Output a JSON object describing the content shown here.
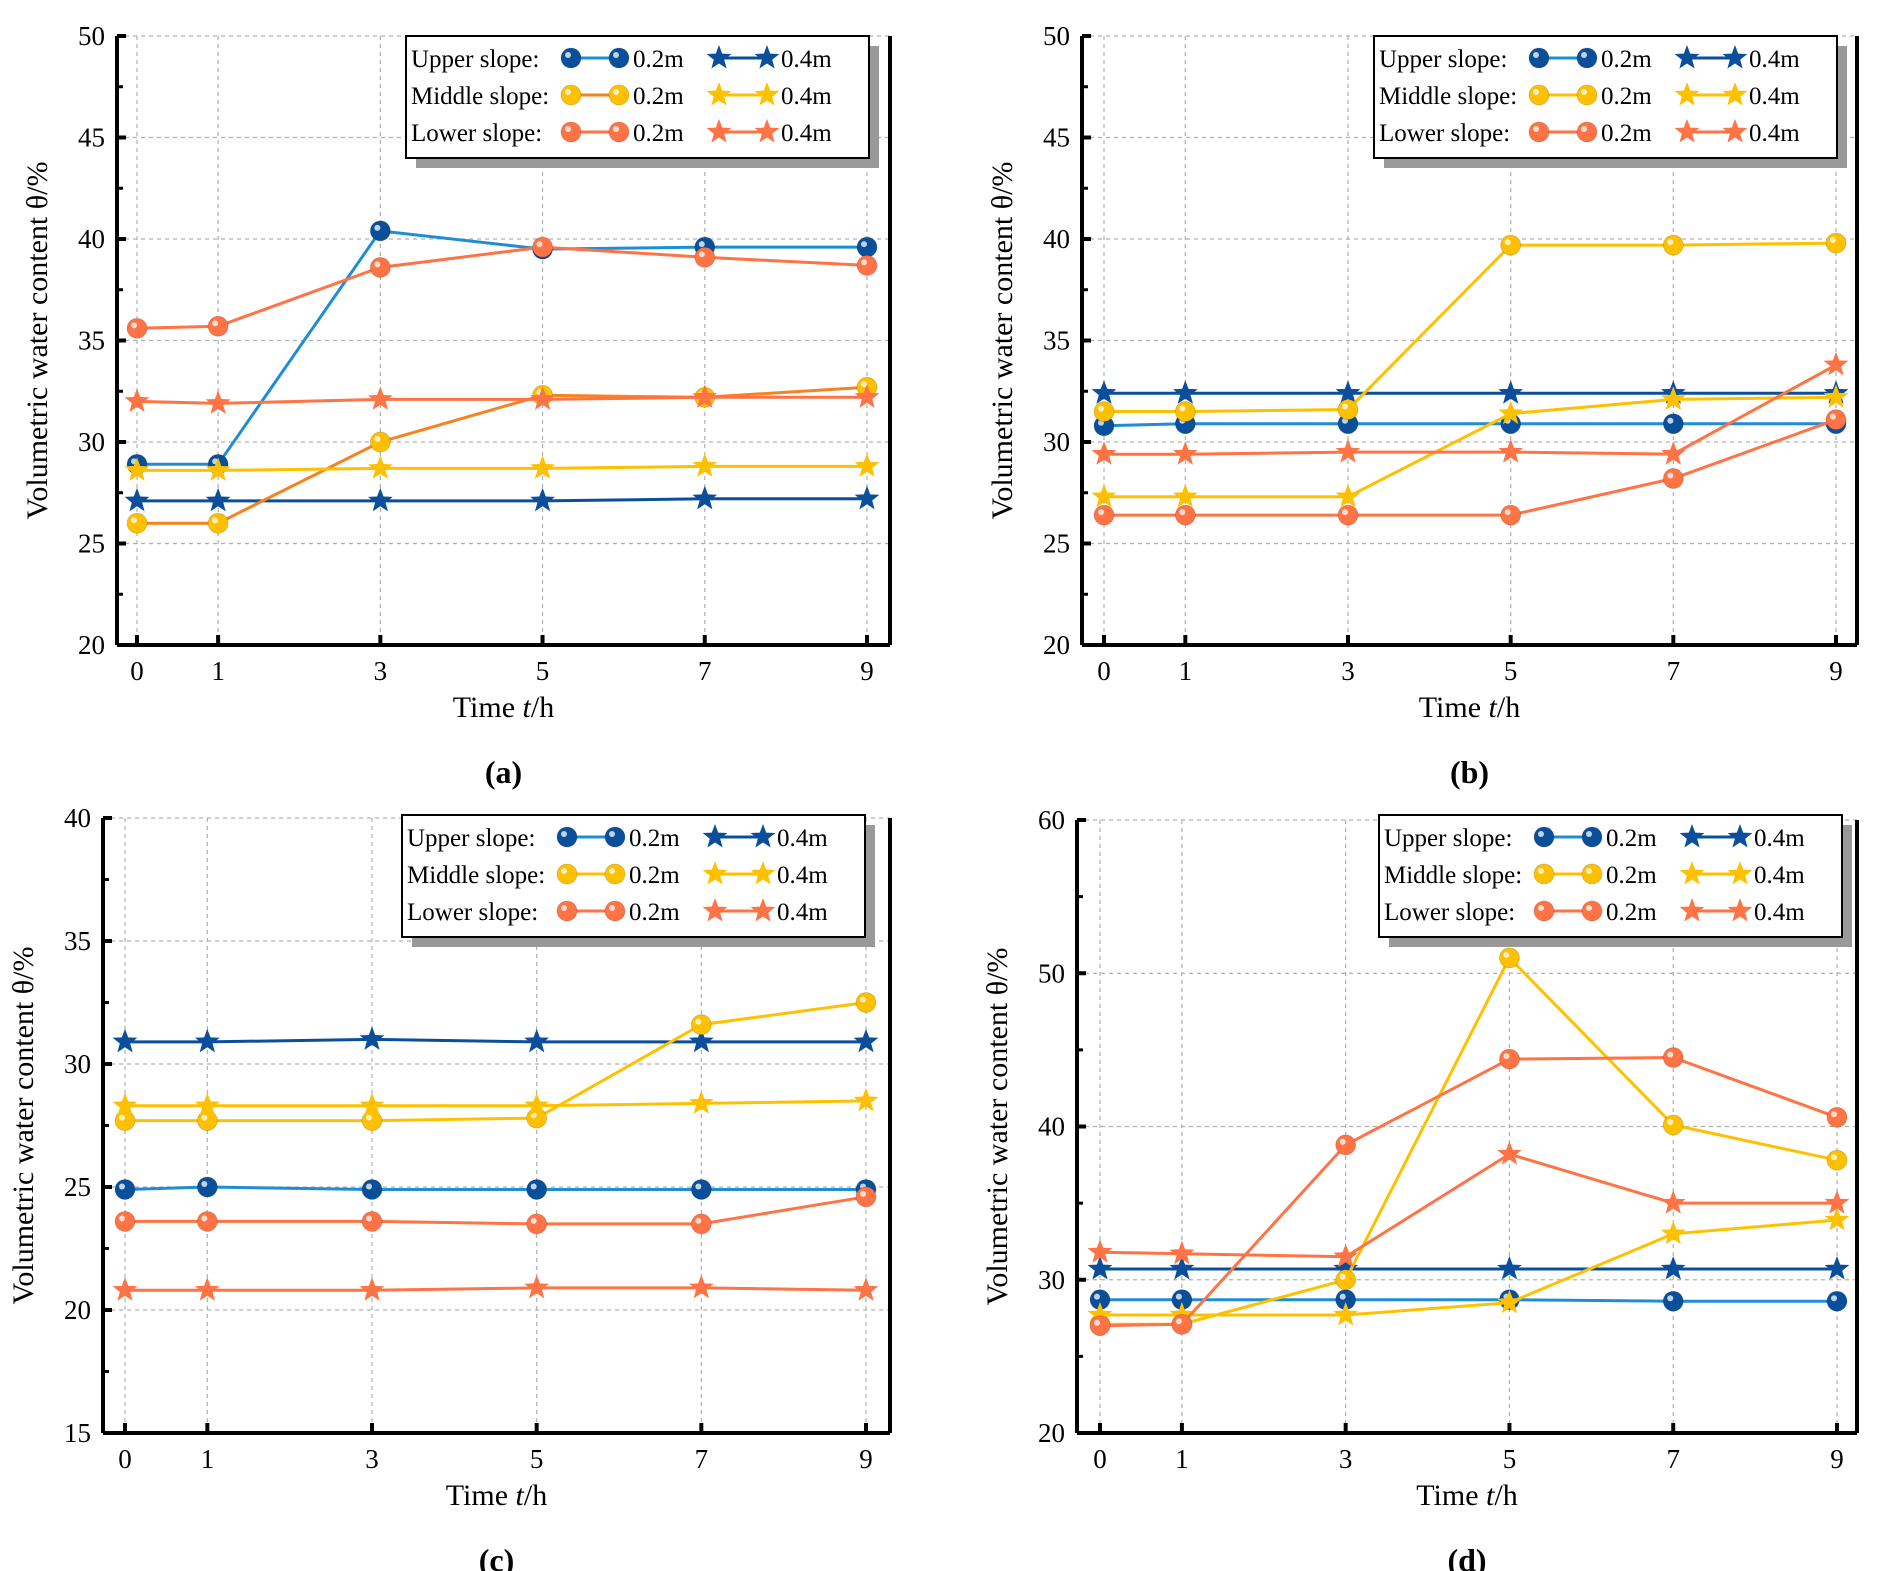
{
  "colors": {
    "upper_02_line": "#1f8dd6",
    "upper_marker": "#0a4f9a",
    "upper_04": "#0b4f9c",
    "middle": "#ffc000",
    "middle_02_line_a": "#f7821e",
    "lower": "#ff7345",
    "grid": "#b0b0b0"
  },
  "chart_data": [
    {
      "type": "line",
      "panel_label": "(a)",
      "xlabel": "Time t/h",
      "ylabel": "Volumetric water content θ/%",
      "x": [
        0,
        1,
        3,
        5,
        7,
        9
      ],
      "ylim": [
        20,
        50
      ],
      "yticks": [
        20,
        25,
        30,
        35,
        40,
        45,
        50
      ],
      "grid": true,
      "legend_placement": "top-right",
      "series": [
        {
          "name": "Upper slope: 0.2m",
          "group": "Upper slope:",
          "depth": "0.2m",
          "marker": "circle",
          "values": [
            28.9,
            28.9,
            40.4,
            39.5,
            39.6,
            39.6
          ]
        },
        {
          "name": "Upper slope: 0.4m",
          "group": "Upper slope:",
          "depth": "0.4m",
          "marker": "star",
          "values": [
            27.1,
            27.1,
            27.1,
            27.1,
            27.2,
            27.2
          ]
        },
        {
          "name": "Middle slope: 0.2m",
          "group": "Middle slope:",
          "depth": "0.2m",
          "marker": "circle",
          "values": [
            26.0,
            26.0,
            30.0,
            32.3,
            32.2,
            32.7
          ]
        },
        {
          "name": "Middle slope: 0.4m",
          "group": "Middle slope:",
          "depth": "0.4m",
          "marker": "star",
          "values": [
            28.6,
            28.6,
            28.7,
            28.7,
            28.8,
            28.8
          ]
        },
        {
          "name": "Lower slope: 0.2m",
          "group": "Lower slope:",
          "depth": "0.2m",
          "marker": "circle",
          "values": [
            35.6,
            35.7,
            38.6,
            39.6,
            39.1,
            38.7
          ]
        },
        {
          "name": "Lower slope: 0.4m",
          "group": "Lower slope:",
          "depth": "0.4m",
          "marker": "star",
          "values": [
            32.0,
            31.9,
            32.1,
            32.1,
            32.2,
            32.2
          ]
        }
      ]
    },
    {
      "type": "line",
      "panel_label": "(b)",
      "xlabel": "Time t/h",
      "ylabel": "Volumetric water content θ/%",
      "x": [
        0,
        1,
        3,
        5,
        7,
        9
      ],
      "ylim": [
        20,
        50
      ],
      "yticks": [
        20,
        25,
        30,
        35,
        40,
        45,
        50
      ],
      "grid": true,
      "legend_placement": "top-right",
      "series": [
        {
          "name": "Upper slope: 0.2m",
          "group": "Upper slope:",
          "depth": "0.2m",
          "marker": "circle",
          "values": [
            30.8,
            30.9,
            30.9,
            30.9,
            30.9,
            30.9
          ]
        },
        {
          "name": "Upper slope: 0.4m",
          "group": "Upper slope:",
          "depth": "0.4m",
          "marker": "star",
          "values": [
            32.4,
            32.4,
            32.4,
            32.4,
            32.4,
            32.4
          ]
        },
        {
          "name": "Middle slope: 0.2m",
          "group": "Middle slope:",
          "depth": "0.2m",
          "marker": "circle",
          "values": [
            31.5,
            31.5,
            31.6,
            39.7,
            39.7,
            39.8
          ]
        },
        {
          "name": "Middle slope: 0.4m",
          "group": "Middle slope:",
          "depth": "0.4m",
          "marker": "star",
          "values": [
            27.3,
            27.3,
            27.3,
            31.4,
            32.1,
            32.2
          ]
        },
        {
          "name": "Lower slope: 0.2m",
          "group": "Lower slope:",
          "depth": "0.2m",
          "marker": "circle",
          "values": [
            26.4,
            26.4,
            26.4,
            26.4,
            28.2,
            31.1
          ]
        },
        {
          "name": "Lower slope: 0.4m",
          "group": "Lower slope:",
          "depth": "0.4m",
          "marker": "star",
          "values": [
            29.4,
            29.4,
            29.5,
            29.5,
            29.4,
            33.8
          ]
        }
      ]
    },
    {
      "type": "line",
      "panel_label": "(c)",
      "xlabel": "Time t/h",
      "ylabel": "Volumetric water content θ/%",
      "x": [
        0,
        1,
        3,
        5,
        7,
        9
      ],
      "ylim": [
        15,
        40
      ],
      "yticks": [
        15,
        20,
        25,
        30,
        35,
        40
      ],
      "grid": true,
      "legend_placement": "top-right",
      "series": [
        {
          "name": "Upper slope: 0.2m",
          "group": "Upper slope:",
          "depth": "0.2m",
          "marker": "circle",
          "values": [
            24.9,
            25.0,
            24.9,
            24.9,
            24.9,
            24.9
          ]
        },
        {
          "name": "Upper slope: 0.4m",
          "group": "Upper slope:",
          "depth": "0.4m",
          "marker": "star",
          "values": [
            30.9,
            30.9,
            31.0,
            30.9,
            30.9,
            30.9
          ]
        },
        {
          "name": "Middle slope: 0.2m",
          "group": "Middle slope:",
          "depth": "0.2m",
          "marker": "circle",
          "values": [
            27.7,
            27.7,
            27.7,
            27.8,
            31.6,
            32.5
          ]
        },
        {
          "name": "Middle slope: 0.4m",
          "group": "Middle slope:",
          "depth": "0.4m",
          "marker": "star",
          "values": [
            28.3,
            28.3,
            28.3,
            28.3,
            28.4,
            28.5
          ]
        },
        {
          "name": "Lower slope: 0.2m",
          "group": "Lower slope:",
          "depth": "0.2m",
          "marker": "circle",
          "values": [
            23.6,
            23.6,
            23.6,
            23.5,
            23.5,
            24.6
          ]
        },
        {
          "name": "Lower slope: 0.4m",
          "group": "Lower slope:",
          "depth": "0.4m",
          "marker": "star",
          "values": [
            20.8,
            20.8,
            20.8,
            20.9,
            20.9,
            20.8
          ]
        }
      ]
    },
    {
      "type": "line",
      "panel_label": "(d)",
      "xlabel": "Time t/h",
      "ylabel": "Volumetric water content θ/%",
      "x": [
        0,
        1,
        3,
        5,
        7,
        9
      ],
      "ylim": [
        20,
        60
      ],
      "yticks": [
        20,
        30,
        40,
        50,
        60
      ],
      "grid": true,
      "legend_placement": "top-right",
      "series": [
        {
          "name": "Upper slope: 0.2m",
          "group": "Upper slope:",
          "depth": "0.2m",
          "marker": "circle",
          "values": [
            28.7,
            28.7,
            28.7,
            28.7,
            28.6,
            28.6
          ]
        },
        {
          "name": "Upper slope: 0.4m",
          "group": "Upper slope:",
          "depth": "0.4m",
          "marker": "star",
          "values": [
            30.7,
            30.7,
            30.7,
            30.7,
            30.7,
            30.7
          ]
        },
        {
          "name": "Middle slope: 0.2m",
          "group": "Middle slope:",
          "depth": "0.2m",
          "marker": "circle",
          "values": [
            27.1,
            27.1,
            30.0,
            51.0,
            40.1,
            37.8
          ]
        },
        {
          "name": "Middle slope: 0.4m",
          "group": "Middle slope:",
          "depth": "0.4m",
          "marker": "star",
          "values": [
            27.7,
            27.7,
            27.7,
            28.5,
            33.0,
            33.9
          ]
        },
        {
          "name": "Lower slope: 0.2m",
          "group": "Lower slope:",
          "depth": "0.2m",
          "marker": "circle",
          "values": [
            27.0,
            27.1,
            38.8,
            44.4,
            44.5,
            40.6
          ]
        },
        {
          "name": "Lower slope: 0.4m",
          "group": "Lower slope:",
          "depth": "0.4m",
          "marker": "star",
          "values": [
            31.8,
            31.7,
            31.5,
            38.2,
            35.0,
            35.0
          ]
        }
      ]
    }
  ]
}
